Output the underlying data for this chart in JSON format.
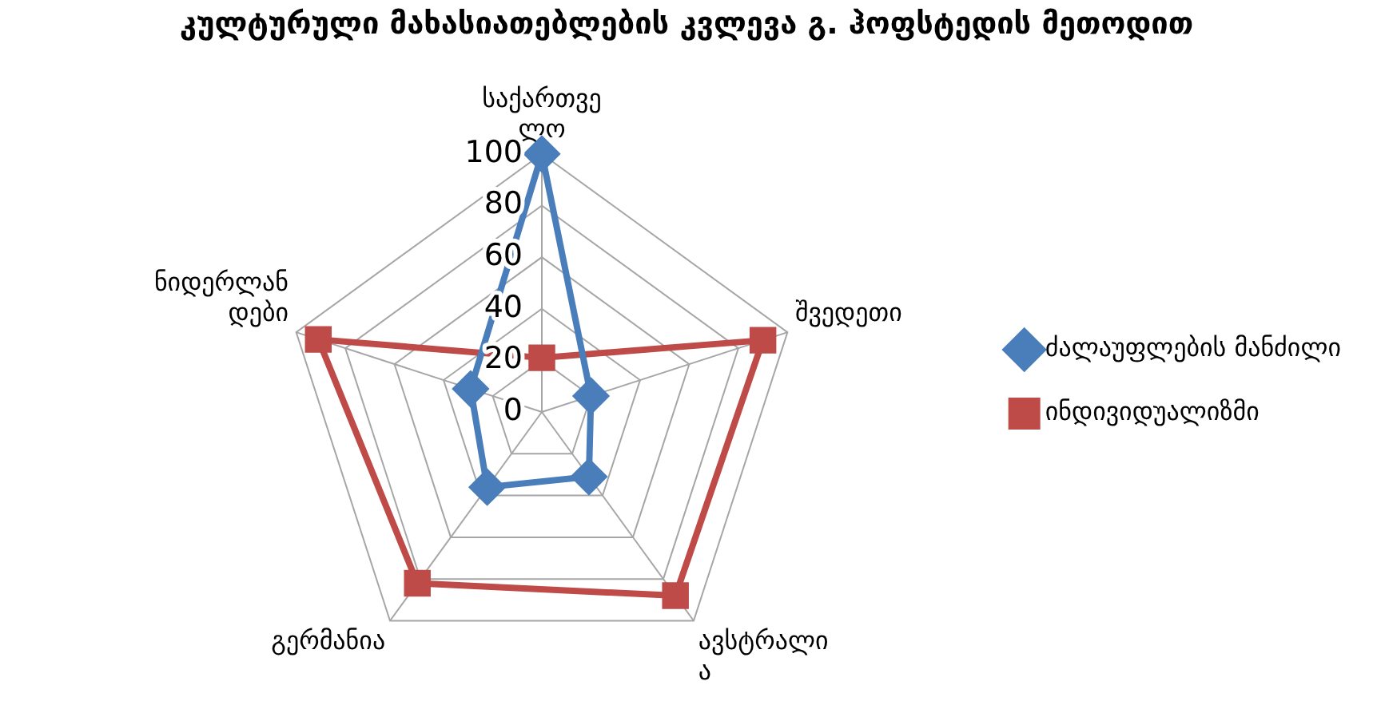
{
  "chart_data": {
    "type": "radar",
    "title": "კულტურული მახასიათებლების კვლევა გ. ჰოფსტედის მეთოდით",
    "categories": [
      "საქართველო",
      "შვედეთი",
      "ავსტრალია",
      "გერმანია",
      "ნიდერლანდები"
    ],
    "series": [
      {
        "name": "ძალაუფლების მანძილი",
        "color": "#4a7ebb",
        "marker": "diamond",
        "values": [
          100,
          20,
          31,
          36,
          29
        ]
      },
      {
        "name": "ინდივიდუალიზმი",
        "color": "#be4b48",
        "marker": "square",
        "values": [
          21,
          90,
          88,
          82,
          91
        ]
      }
    ],
    "ylim": [
      0,
      100
    ],
    "yticks": [
      0,
      20,
      40,
      60,
      80,
      100
    ],
    "grid": true,
    "legend": "right"
  }
}
